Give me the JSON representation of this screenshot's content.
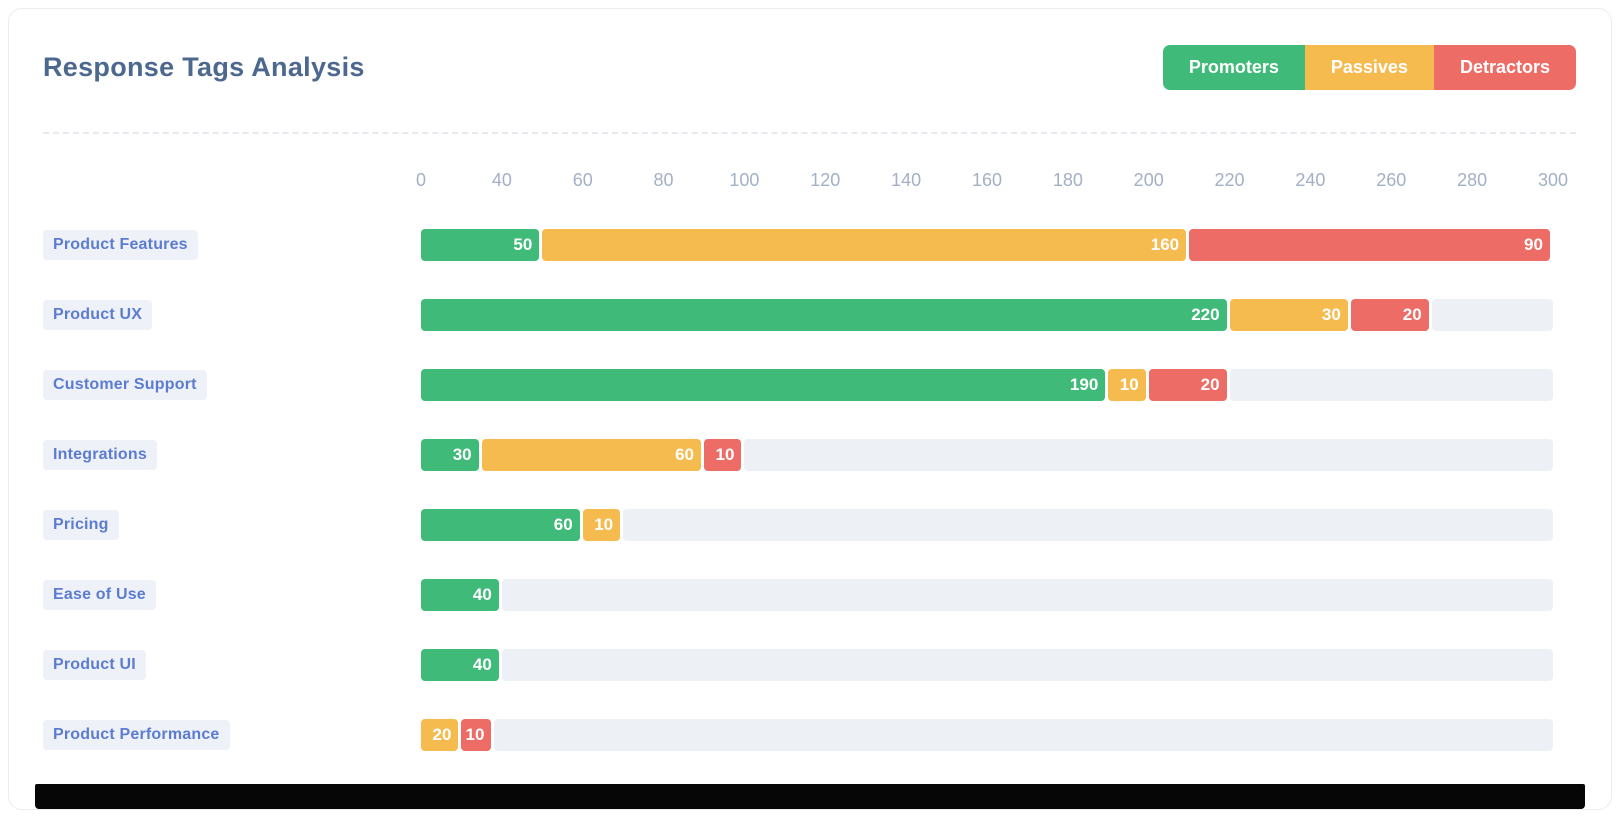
{
  "title": "Response Tags Analysis",
  "colors": {
    "title_text": "#4C688F",
    "tick_text": "#A3B0C5",
    "row_label_text": "#5B7CD1",
    "row_label_bg": "#EEF1F8",
    "track": "#EDF0F4",
    "promoters": "#40BA78",
    "passives": "#F6BB4E",
    "detractors": "#ED6C65"
  },
  "legend": {
    "items": [
      {
        "label": "Promoters",
        "color": "#40BA78"
      },
      {
        "label": "Passives",
        "color": "#F6BB4E"
      },
      {
        "label": "Detractors",
        "color": "#ED6C65"
      }
    ]
  },
  "chart_data": {
    "type": "bar",
    "orientation": "horizontal",
    "stacked": true,
    "title": "Response Tags Analysis",
    "categories": [
      "Product Features",
      "Product UX",
      "Customer Support",
      "Integrations",
      "Pricing",
      "Ease of Use",
      "Product UI",
      "Product Performance"
    ],
    "series": [
      {
        "name": "Promoters",
        "color": "#40BA78",
        "values": [
          50,
          220,
          190,
          30,
          60,
          40,
          40,
          0
        ]
      },
      {
        "name": "Passives",
        "color": "#F6BB4E",
        "values": [
          160,
          30,
          10,
          60,
          10,
          0,
          0,
          20
        ]
      },
      {
        "name": "Detractors",
        "color": "#ED6C65",
        "values": [
          90,
          20,
          20,
          10,
          0,
          0,
          0,
          10
        ]
      }
    ],
    "x_ticks": [
      0,
      40,
      60,
      80,
      100,
      120,
      140,
      160,
      180,
      200,
      220,
      240,
      260,
      280,
      300
    ],
    "xlim": [
      0,
      300
    ],
    "axis_note": "tick labels are equally spaced: 0-40 spans one slot, then 20 units per slot",
    "grid": false,
    "legend_position": "top-right"
  }
}
